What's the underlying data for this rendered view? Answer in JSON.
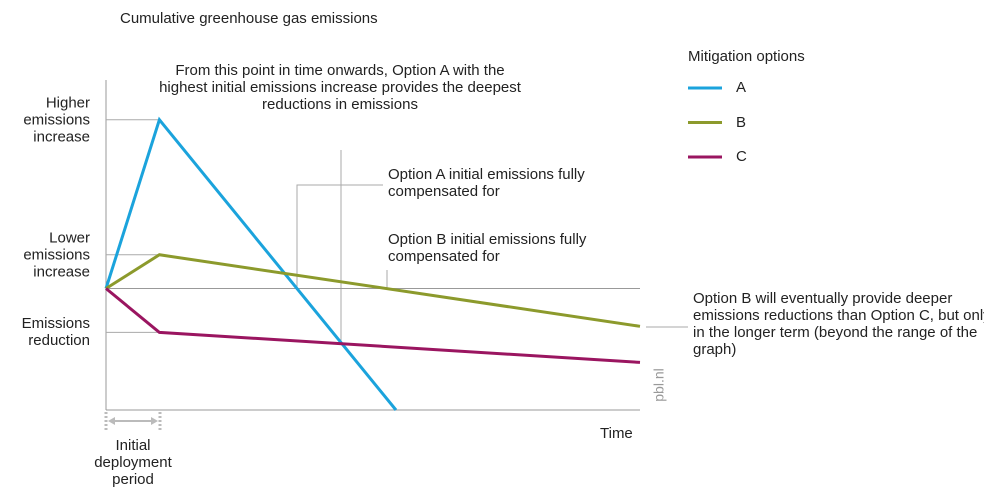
{
  "chart_data": {
    "type": "line",
    "title": "Cumulative greenhouse gas emissions",
    "xlabel": "Time",
    "xlim": [
      0,
      10
    ],
    "ylim": [
      -3.6,
      6
    ],
    "yticks": [
      {
        "value": 5,
        "label": "Higher emissions increase"
      },
      {
        "value": 1,
        "label": "Lower emissions increase"
      },
      {
        "value": -1.3,
        "label": "Emissions reduction"
      }
    ],
    "legend_title": "Mitigation options",
    "legend": "right",
    "series": [
      {
        "name": "A",
        "color": "#1ba3dc",
        "x": [
          0,
          1,
          5.43
        ],
        "values": [
          0,
          5,
          -3.6
        ]
      },
      {
        "name": "B",
        "color": "#8c9a2c",
        "x": [
          0,
          1,
          10
        ],
        "values": [
          0,
          1,
          -1.12
        ]
      },
      {
        "name": "C",
        "color": "#9a1560",
        "x": [
          0,
          1,
          10
        ],
        "values": [
          0,
          -1.3,
          -2.19
        ]
      }
    ],
    "annotations": [
      "From this point in time onwards, Option A with the highest initial emissions increase provides the deepest reductions in emissions",
      "Option A initial emissions fully compensated for",
      "Option B initial emissions fully compensated for",
      "Option B will eventually provide deeper emissions reductions than Option C, but only in the longer term (beyond the range of the graph)"
    ],
    "period_label": "Initial deployment period",
    "source": "pbl.nl"
  }
}
